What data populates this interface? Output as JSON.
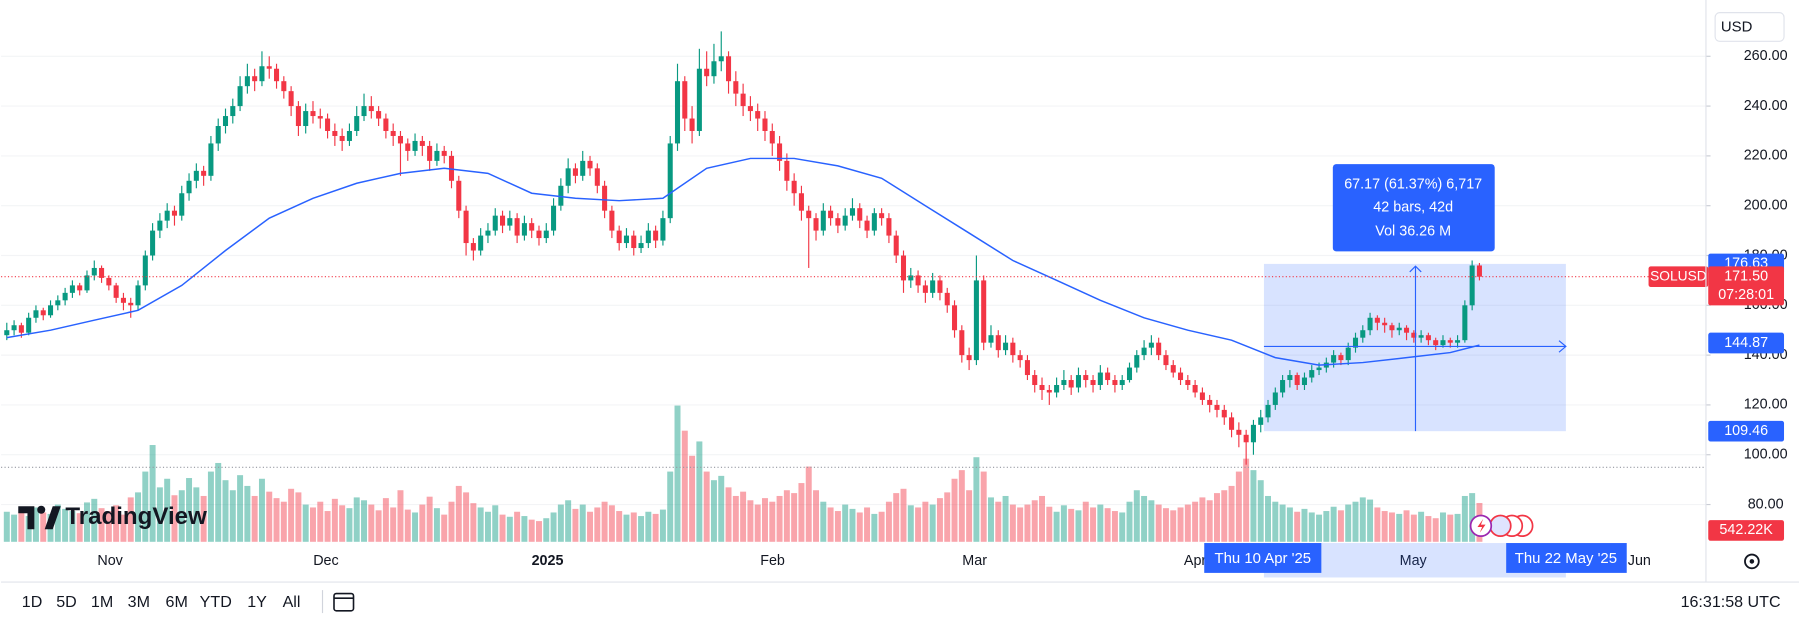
{
  "brand": "TradingView",
  "toolbar": {
    "ranges": [
      "1D",
      "5D",
      "1M",
      "3M",
      "6M",
      "YTD",
      "1Y",
      "All"
    ],
    "clock": "16:31:58 UTC",
    "currency": "USD"
  },
  "chart_data": {
    "type": "candlestick",
    "symbol": "SOLUSD",
    "up_color": "#089981",
    "down_color": "#f23645",
    "ylim": [
      65.0,
      282.6
    ],
    "yticks": [
      {
        "value": 80,
        "label": "80.00"
      },
      {
        "value": 100,
        "label": "100.00"
      },
      {
        "value": 120,
        "label": "120.00"
      },
      {
        "value": 140,
        "label": "140.00"
      },
      {
        "value": 160,
        "label": "160.00"
      },
      {
        "value": 180,
        "label": "180.00"
      },
      {
        "value": 200,
        "label": "200.00"
      },
      {
        "value": 220,
        "label": "220.00"
      },
      {
        "value": 240,
        "label": "240.00"
      },
      {
        "value": 260,
        "label": "260.00"
      }
    ],
    "grid": true,
    "x_labels": [
      "Nov",
      "Dec",
      "2025",
      "Feb",
      "Mar",
      "Apr",
      "May",
      "Jun"
    ],
    "candles": [
      [
        148,
        153,
        146,
        150
      ],
      [
        150,
        154,
        148,
        152
      ],
      [
        152,
        153,
        147,
        149
      ],
      [
        149,
        157,
        148,
        155
      ],
      [
        155,
        160,
        153,
        158
      ],
      [
        158,
        159,
        154,
        156
      ],
      [
        156,
        162,
        155,
        160
      ],
      [
        160,
        164,
        158,
        162
      ],
      [
        162,
        167,
        160,
        165
      ],
      [
        165,
        170,
        163,
        168
      ],
      [
        168,
        169,
        164,
        166
      ],
      [
        166,
        174,
        165,
        172
      ],
      [
        172,
        178,
        170,
        175
      ],
      [
        175,
        176,
        169,
        171
      ],
      [
        171,
        172,
        166,
        168
      ],
      [
        168,
        169,
        161,
        163
      ],
      [
        163,
        165,
        158,
        161
      ],
      [
        161,
        163,
        155,
        160
      ],
      [
        160,
        170,
        158,
        168
      ],
      [
        168,
        182,
        166,
        180
      ],
      [
        180,
        193,
        178,
        190
      ],
      [
        190,
        197,
        187,
        194
      ],
      [
        194,
        201,
        191,
        198
      ],
      [
        198,
        200,
        192,
        196
      ],
      [
        196,
        208,
        194,
        205
      ],
      [
        205,
        213,
        202,
        210
      ],
      [
        210,
        217,
        207,
        214
      ],
      [
        214,
        216,
        208,
        212
      ],
      [
        212,
        228,
        210,
        225
      ],
      [
        225,
        235,
        222,
        232
      ],
      [
        232,
        239,
        229,
        236
      ],
      [
        236,
        243,
        233,
        240
      ],
      [
        240,
        252,
        238,
        248
      ],
      [
        248,
        257,
        245,
        252
      ],
      [
        252,
        255,
        246,
        250
      ],
      [
        250,
        262,
        248,
        256
      ],
      [
        256,
        260,
        251,
        255
      ],
      [
        255,
        257,
        247,
        250
      ],
      [
        250,
        252,
        243,
        246
      ],
      [
        246,
        248,
        236,
        240
      ],
      [
        240,
        242,
        228,
        232
      ],
      [
        232,
        241,
        229,
        238
      ],
      [
        238,
        242,
        233,
        236
      ],
      [
        236,
        239,
        231,
        235
      ],
      [
        235,
        237,
        227,
        230
      ],
      [
        230,
        233,
        224,
        228
      ],
      [
        228,
        231,
        222,
        226
      ],
      [
        226,
        233,
        224,
        230
      ],
      [
        230,
        240,
        228,
        236
      ],
      [
        236,
        245,
        234,
        240
      ],
      [
        240,
        244,
        235,
        238
      ],
      [
        238,
        240,
        232,
        235
      ],
      [
        235,
        237,
        227,
        230
      ],
      [
        230,
        233,
        224,
        228
      ],
      [
        228,
        230,
        212,
        225
      ],
      [
        225,
        227,
        218,
        222
      ],
      [
        222,
        229,
        220,
        226
      ],
      [
        226,
        228,
        220,
        224
      ],
      [
        224,
        226,
        214,
        218
      ],
      [
        218,
        225,
        216,
        222
      ],
      [
        222,
        224,
        217,
        220
      ],
      [
        220,
        222,
        207,
        210
      ],
      [
        210,
        212,
        195,
        198
      ],
      [
        198,
        200,
        180,
        185
      ],
      [
        185,
        187,
        178,
        182
      ],
      [
        182,
        191,
        180,
        188
      ],
      [
        188,
        193,
        185,
        190
      ],
      [
        190,
        199,
        188,
        196
      ],
      [
        196,
        198,
        189,
        192
      ],
      [
        192,
        198,
        190,
        195
      ],
      [
        195,
        197,
        185,
        188
      ],
      [
        188,
        196,
        186,
        193
      ],
      [
        193,
        195,
        187,
        190
      ],
      [
        190,
        192,
        184,
        187
      ],
      [
        187,
        193,
        185,
        190
      ],
      [
        190,
        203,
        188,
        200
      ],
      [
        200,
        211,
        198,
        208
      ],
      [
        208,
        219,
        205,
        215
      ],
      [
        215,
        217,
        209,
        212
      ],
      [
        212,
        222,
        210,
        218
      ],
      [
        218,
        220,
        212,
        215
      ],
      [
        215,
        217,
        205,
        208
      ],
      [
        208,
        210,
        195,
        198
      ],
      [
        198,
        200,
        187,
        190
      ],
      [
        190,
        192,
        182,
        185
      ],
      [
        185,
        191,
        183,
        188
      ],
      [
        188,
        190,
        180,
        183
      ],
      [
        183,
        188,
        181,
        185
      ],
      [
        185,
        193,
        183,
        190
      ],
      [
        190,
        192,
        183,
        186
      ],
      [
        186,
        198,
        184,
        195
      ],
      [
        195,
        228,
        193,
        225
      ],
      [
        225,
        257,
        222,
        250
      ],
      [
        250,
        252,
        230,
        235
      ],
      [
        235,
        240,
        225,
        230
      ],
      [
        230,
        263,
        228,
        255
      ],
      [
        255,
        262,
        248,
        252
      ],
      [
        252,
        265,
        249,
        258
      ],
      [
        258,
        270,
        254,
        260
      ],
      [
        260,
        262,
        245,
        250
      ],
      [
        250,
        254,
        240,
        245
      ],
      [
        245,
        249,
        236,
        240
      ],
      [
        240,
        244,
        234,
        238
      ],
      [
        238,
        241,
        230,
        235
      ],
      [
        235,
        238,
        226,
        230
      ],
      [
        230,
        233,
        220,
        225
      ],
      [
        225,
        228,
        214,
        218
      ],
      [
        218,
        221,
        206,
        210
      ],
      [
        210,
        213,
        200,
        205
      ],
      [
        205,
        208,
        194,
        198
      ],
      [
        198,
        200,
        175,
        195
      ],
      [
        195,
        197,
        186,
        190
      ],
      [
        190,
        201,
        188,
        198
      ],
      [
        198,
        200,
        192,
        195
      ],
      [
        195,
        197,
        189,
        192
      ],
      [
        192,
        199,
        190,
        196
      ],
      [
        196,
        203,
        194,
        199
      ],
      [
        199,
        201,
        191,
        194
      ],
      [
        194,
        196,
        187,
        190
      ],
      [
        190,
        199,
        188,
        197
      ],
      [
        197,
        199,
        192,
        195
      ],
      [
        195,
        197,
        185,
        188
      ],
      [
        188,
        190,
        177,
        180
      ],
      [
        180,
        182,
        165,
        170
      ],
      [
        170,
        175,
        167,
        172
      ],
      [
        172,
        174,
        165,
        168
      ],
      [
        168,
        170,
        161,
        165
      ],
      [
        165,
        173,
        163,
        170
      ],
      [
        170,
        172,
        162,
        165
      ],
      [
        165,
        167,
        157,
        160
      ],
      [
        160,
        162,
        147,
        150
      ],
      [
        150,
        152,
        137,
        140
      ],
      [
        140,
        143,
        134,
        138
      ],
      [
        138,
        180,
        136,
        170
      ],
      [
        170,
        172,
        142,
        145
      ],
      [
        145,
        152,
        143,
        148
      ],
      [
        148,
        150,
        139,
        142
      ],
      [
        142,
        148,
        140,
        145
      ],
      [
        145,
        147,
        137,
        140
      ],
      [
        140,
        142,
        135,
        138
      ],
      [
        138,
        140,
        130,
        132
      ],
      [
        132,
        134,
        125,
        128
      ],
      [
        128,
        131,
        122,
        126
      ],
      [
        126,
        128,
        120,
        125
      ],
      [
        125,
        131,
        123,
        128
      ],
      [
        128,
        134,
        126,
        130
      ],
      [
        130,
        132,
        124,
        127
      ],
      [
        127,
        135,
        125,
        132
      ],
      [
        132,
        134,
        127,
        130
      ],
      [
        130,
        132,
        125,
        128
      ],
      [
        128,
        136,
        126,
        133
      ],
      [
        133,
        135,
        128,
        130
      ],
      [
        130,
        132,
        125,
        128
      ],
      [
        128,
        132,
        126,
        130
      ],
      [
        130,
        137,
        129,
        135
      ],
      [
        135,
        142,
        133,
        140
      ],
      [
        140,
        146,
        138,
        143
      ],
      [
        143,
        148,
        140,
        145
      ],
      [
        145,
        147,
        138,
        140
      ],
      [
        140,
        142,
        134,
        136
      ],
      [
        136,
        138,
        131,
        133
      ],
      [
        133,
        135,
        128,
        130
      ],
      [
        130,
        132,
        126,
        128
      ],
      [
        128,
        130,
        123,
        125
      ],
      [
        125,
        127,
        120,
        122
      ],
      [
        122,
        124,
        117,
        120
      ],
      [
        120,
        122,
        115,
        118
      ],
      [
        118,
        120,
        112,
        115
      ],
      [
        115,
        117,
        107,
        110
      ],
      [
        110,
        113,
        103,
        108
      ],
      [
        108,
        110,
        96,
        105
      ],
      [
        105,
        114,
        100,
        112
      ],
      [
        112,
        118,
        109,
        115
      ],
      [
        115,
        122,
        113,
        120
      ],
      [
        120,
        127,
        118,
        125
      ],
      [
        125,
        132,
        123,
        130
      ],
      [
        130,
        134,
        127,
        132
      ],
      [
        132,
        133,
        126,
        128
      ],
      [
        128,
        133,
        126,
        131
      ],
      [
        131,
        136,
        129,
        134
      ],
      [
        134,
        137,
        132,
        135
      ],
      [
        135,
        139,
        133,
        137
      ],
      [
        137,
        142,
        135,
        140
      ],
      [
        140,
        141,
        136,
        138
      ],
      [
        138,
        145,
        136,
        143
      ],
      [
        143,
        149,
        141,
        147
      ],
      [
        147,
        152,
        145,
        150
      ],
      [
        150,
        157,
        148,
        155
      ],
      [
        155,
        156,
        150,
        153
      ],
      [
        153,
        155,
        149,
        152
      ],
      [
        152,
        153,
        147,
        150
      ],
      [
        150,
        153,
        148,
        151
      ],
      [
        151,
        152,
        146,
        149
      ],
      [
        149,
        150,
        145,
        147
      ],
      [
        147,
        150,
        145,
        148
      ],
      [
        148,
        149,
        144,
        146
      ],
      [
        146,
        147,
        142,
        144
      ],
      [
        144,
        148,
        143,
        146
      ],
      [
        146,
        147,
        143,
        145
      ],
      [
        145,
        148,
        143,
        146
      ],
      [
        146,
        162,
        145,
        160
      ],
      [
        160,
        178,
        158,
        176
      ],
      [
        176,
        177,
        170,
        171.5
      ]
    ],
    "volume": [
      420000,
      380000,
      450000,
      360000,
      480000,
      410000,
      390000,
      520000,
      460000,
      430000,
      400000,
      550000,
      600000,
      470000,
      430000,
      510000,
      380000,
      620000,
      690000,
      980000,
      1350000,
      760000,
      880000,
      650000,
      720000,
      890000,
      760000,
      640000,
      980000,
      1100000,
      860000,
      720000,
      930000,
      780000,
      640000,
      880000,
      700000,
      610000,
      560000,
      740000,
      690000,
      520000,
      480000,
      560000,
      430000,
      600000,
      510000,
      470000,
      620000,
      580000,
      520000,
      440000,
      610000,
      480000,
      720000,
      450000,
      410000,
      520000,
      630000,
      470000,
      380000,
      560000,
      780000,
      690000,
      540000,
      480000,
      420000,
      510000,
      380000,
      350000,
      420000,
      360000,
      310000,
      290000,
      330000,
      410000,
      520000,
      580000,
      460000,
      520000,
      420000,
      480000,
      560000,
      510000,
      430000,
      380000,
      410000,
      360000,
      420000,
      390000,
      450000,
      980000,
      1900000,
      1550000,
      1200000,
      1400000,
      980000,
      860000,
      920000,
      760000,
      640000,
      700000,
      580000,
      520000,
      610000,
      560000,
      640000,
      720000,
      680000,
      820000,
      1050000,
      720000,
      560000,
      480000,
      430000,
      520000,
      460000,
      410000,
      480000,
      390000,
      420000,
      560000,
      680000,
      740000,
      510000,
      480000,
      560000,
      520000,
      610000,
      690000,
      880000,
      1000000,
      720000,
      1180000,
      980000,
      620000,
      560000,
      640000,
      520000,
      480000,
      520000,
      580000,
      640000,
      490000,
      420000,
      510000,
      460000,
      440000,
      560000,
      480000,
      520000,
      470000,
      430000,
      410000,
      560000,
      720000,
      640000,
      580000,
      520000,
      470000,
      440000,
      480000,
      520000,
      560000,
      620000,
      580000,
      680000,
      720000,
      780000,
      980000,
      1160000,
      1000000,
      860000,
      640000,
      560000,
      520000,
      480000,
      420000,
      460000,
      410000,
      380000,
      430000,
      490000,
      440000,
      520000,
      560000,
      620000,
      590000,
      480000,
      430000,
      410000,
      390000,
      440000,
      380000,
      420000,
      360000,
      330000,
      410000,
      380000,
      390000,
      640000,
      680000,
      542220
    ],
    "volume_label": "542.22K",
    "ma": {
      "color": "#2962ff",
      "index": [
        0,
        6,
        12,
        18,
        24,
        30,
        36,
        42,
        48,
        54,
        60,
        66,
        72,
        78,
        84,
        90,
        96,
        102,
        108,
        114,
        120,
        126,
        132,
        138,
        144,
        150,
        156,
        162,
        168,
        174,
        180,
        186,
        192,
        198,
        202
      ],
      "values": [
        147,
        150,
        154,
        158,
        168,
        182,
        195,
        203,
        209,
        213,
        215,
        213,
        205,
        203,
        202,
        203,
        215,
        219,
        219,
        216,
        211,
        200,
        189,
        178,
        170,
        162,
        155,
        150,
        146,
        139,
        136,
        137,
        139,
        141,
        144
      ]
    },
    "last_price": {
      "value": 171.5,
      "label": "171.50"
    },
    "countdown": "07:28:01",
    "measure": {
      "change_label": "67.17 (61.37%) 6,717",
      "bars_label": "42 bars, 42d",
      "volume_label": "Vol 36.26 M",
      "high": 176.63,
      "low": 109.46,
      "start_price": 144.87,
      "start_label": "Thu 10 Apr '25",
      "end_label": "Thu 22 May '25"
    }
  }
}
